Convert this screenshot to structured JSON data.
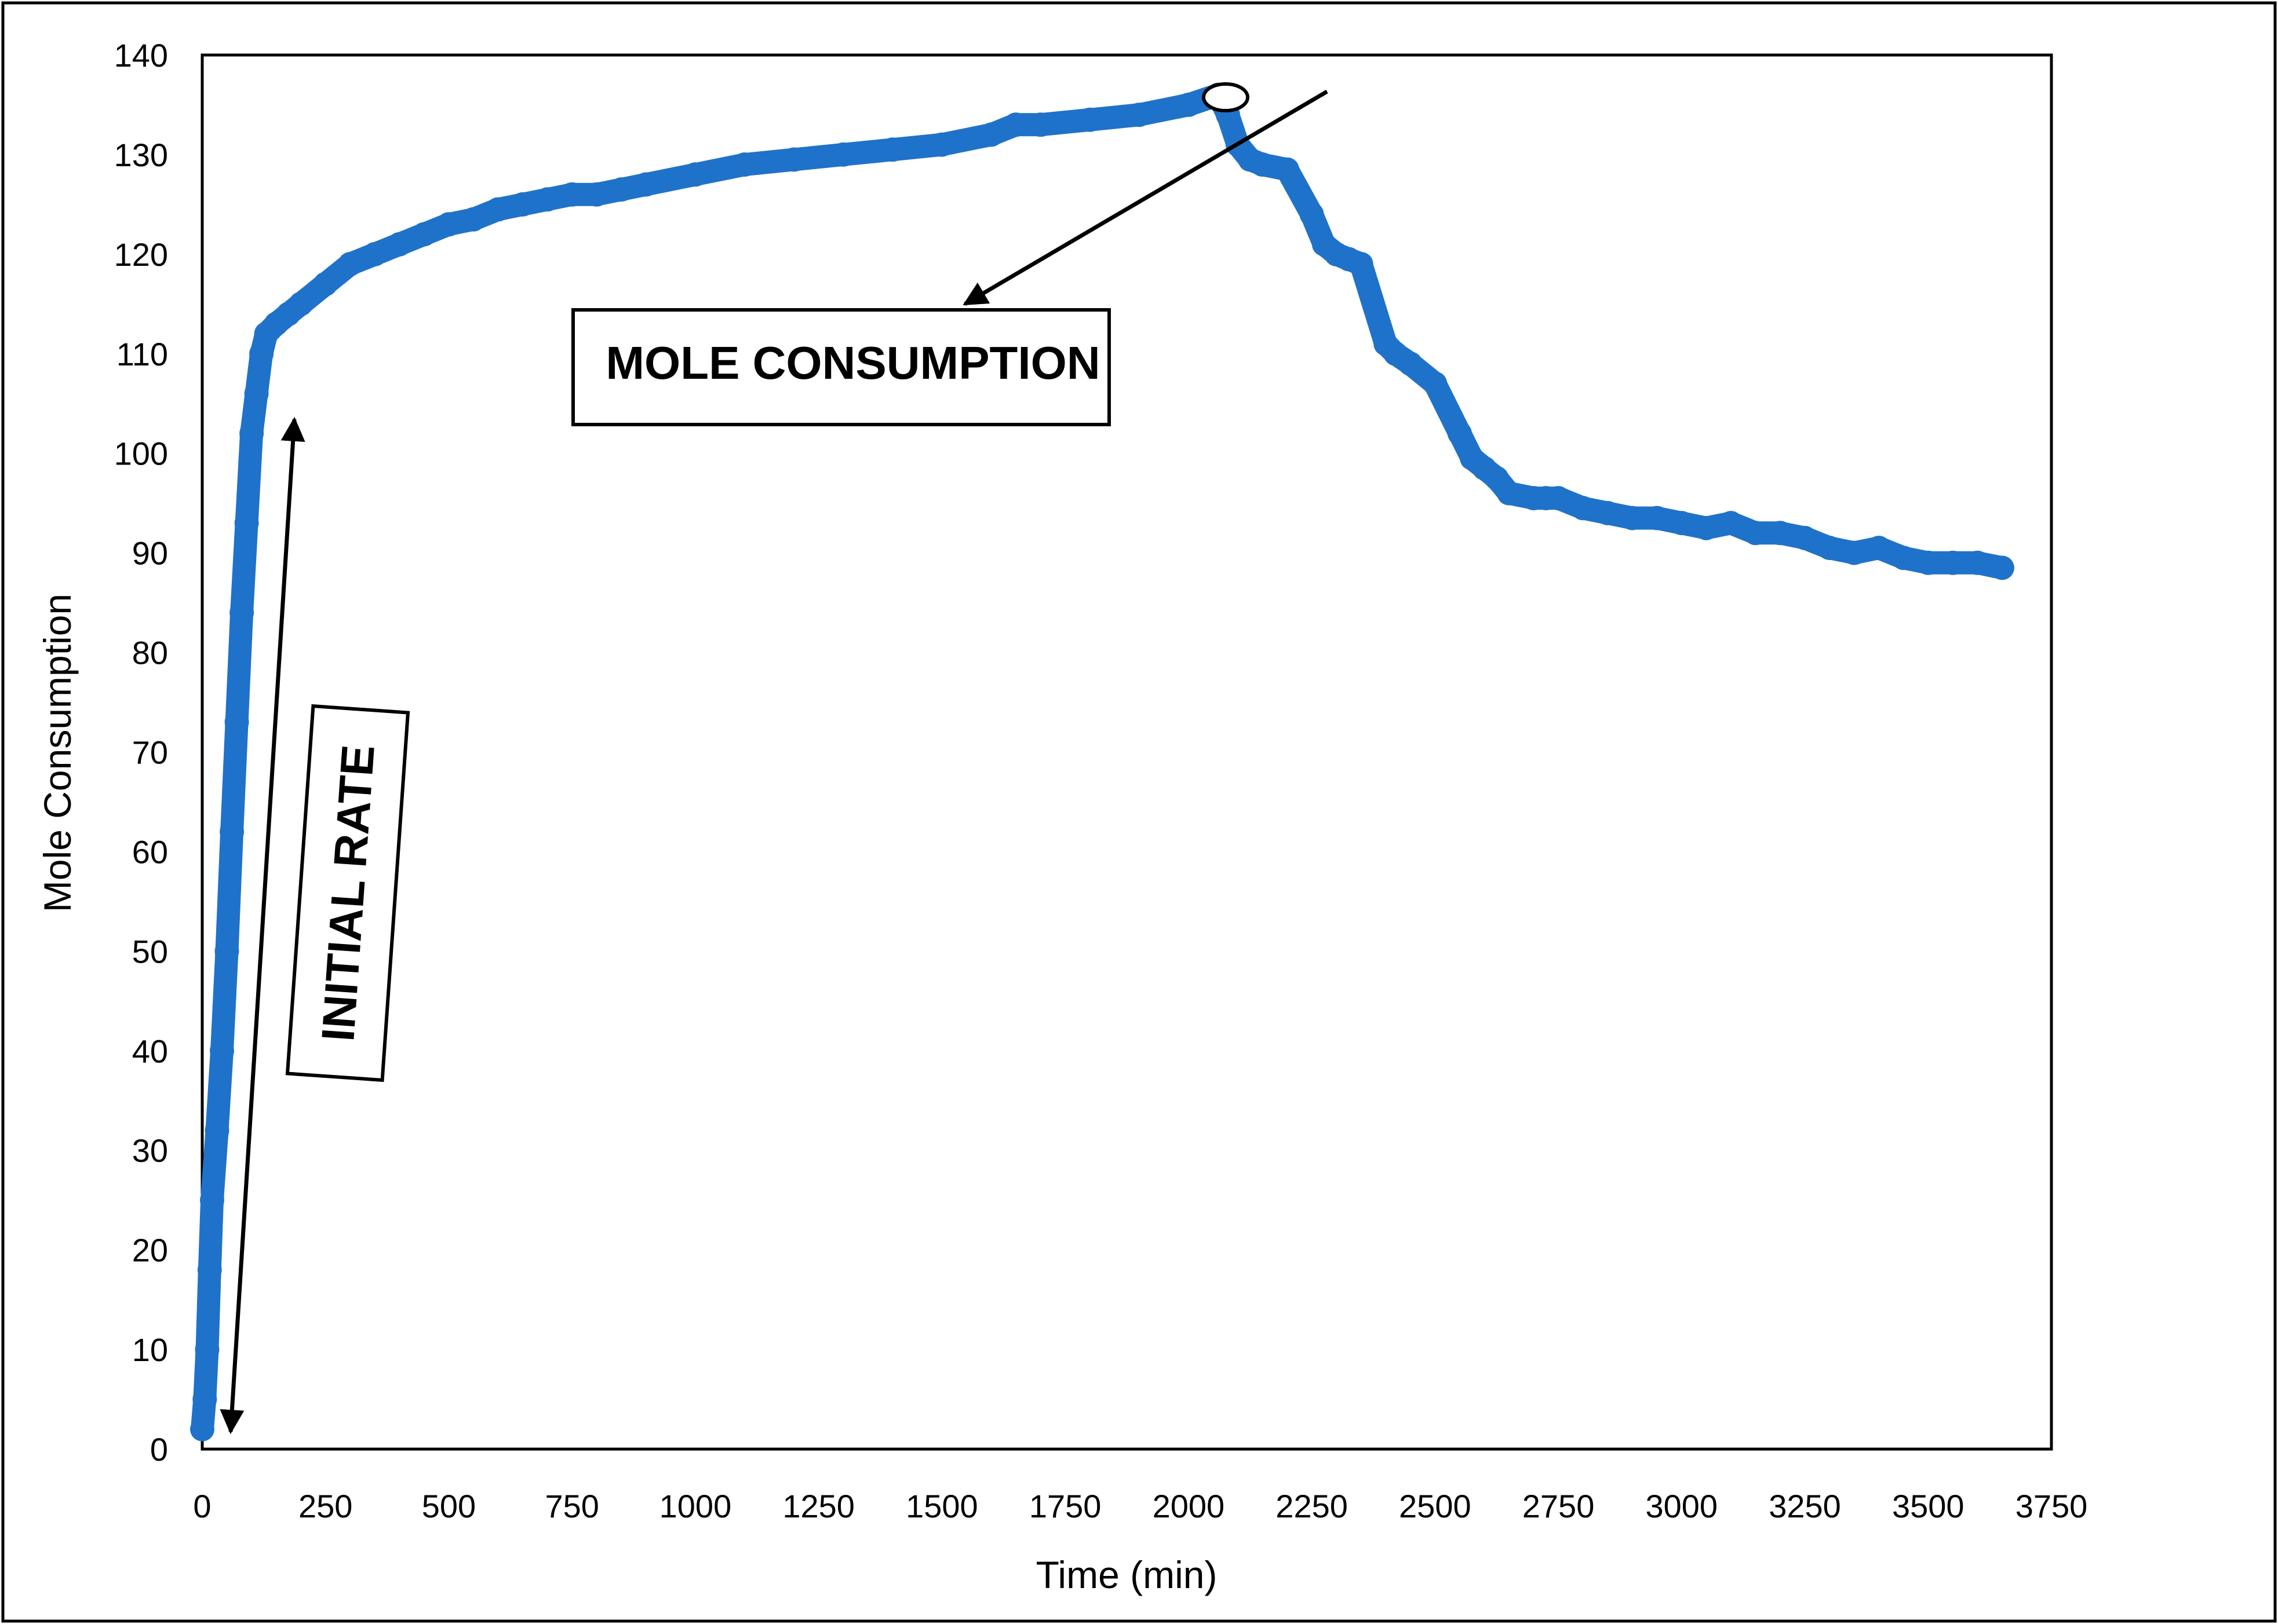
{
  "chart_data": {
    "type": "line",
    "title": "",
    "xlabel": "Time (min)",
    "ylabel": "Mole Consumption",
    "xlim": [
      0,
      3750
    ],
    "ylim": [
      0,
      140
    ],
    "x_ticks": [
      "0",
      "250",
      "500",
      "750",
      "1000",
      "1250",
      "1500",
      "1750",
      "2000",
      "2250",
      "2500",
      "2750",
      "3000",
      "3250",
      "3500",
      "3750"
    ],
    "y_ticks": [
      "0",
      "10",
      "20",
      "30",
      "40",
      "50",
      "60",
      "70",
      "80",
      "90",
      "100",
      "110",
      "120",
      "130",
      "140"
    ],
    "grid": false,
    "legend": "none",
    "series": [
      {
        "name": "Mole Consumption",
        "color": "#1f72c9",
        "x": [
          0,
          5,
          10,
          15,
          20,
          30,
          40,
          50,
          60,
          70,
          80,
          90,
          100,
          110,
          120,
          130,
          150,
          175,
          200,
          250,
          300,
          350,
          400,
          450,
          500,
          550,
          600,
          650,
          700,
          750,
          800,
          850,
          900,
          1000,
          1100,
          1200,
          1300,
          1400,
          1500,
          1600,
          1650,
          1700,
          1800,
          1900,
          2000,
          2060,
          2080,
          2100,
          2125,
          2150,
          2200,
          2250,
          2275,
          2300,
          2325,
          2350,
          2400,
          2420,
          2450,
          2500,
          2550,
          2575,
          2600,
          2625,
          2650,
          2700,
          2725,
          2750,
          2800,
          2850,
          2900,
          2950,
          3000,
          3050,
          3100,
          3150,
          3200,
          3250,
          3300,
          3350,
          3400,
          3450,
          3500,
          3550,
          3600,
          3650
        ],
        "y": [
          2,
          5,
          10,
          18,
          25,
          32,
          40,
          50,
          62,
          73,
          84,
          93,
          102,
          106,
          110,
          112,
          113,
          114,
          115,
          117,
          119,
          120,
          121,
          122,
          123,
          123.5,
          124.5,
          125,
          125.5,
          126,
          126,
          126.5,
          127,
          128,
          129,
          129.5,
          130,
          130.5,
          131,
          132,
          133,
          133,
          133.5,
          134,
          135,
          136,
          134,
          131,
          129.5,
          129,
          128.5,
          124,
          121,
          120,
          119.5,
          119,
          111,
          110,
          109,
          107,
          102,
          99.5,
          98.5,
          97.5,
          96,
          95.5,
          95.5,
          95.5,
          94.5,
          94,
          93.5,
          93.5,
          93,
          92.5,
          93,
          92,
          92,
          91.5,
          90.5,
          90,
          90.5,
          89.5,
          89,
          89,
          89,
          88.5
        ]
      }
    ],
    "annotations": [
      {
        "label": "MOLE CONSUMPTION",
        "kind": "boxed-callout-with-arrow"
      },
      {
        "label": "INITIAL RATE",
        "kind": "rotated-boxed-label-with-double-arrow"
      }
    ]
  }
}
